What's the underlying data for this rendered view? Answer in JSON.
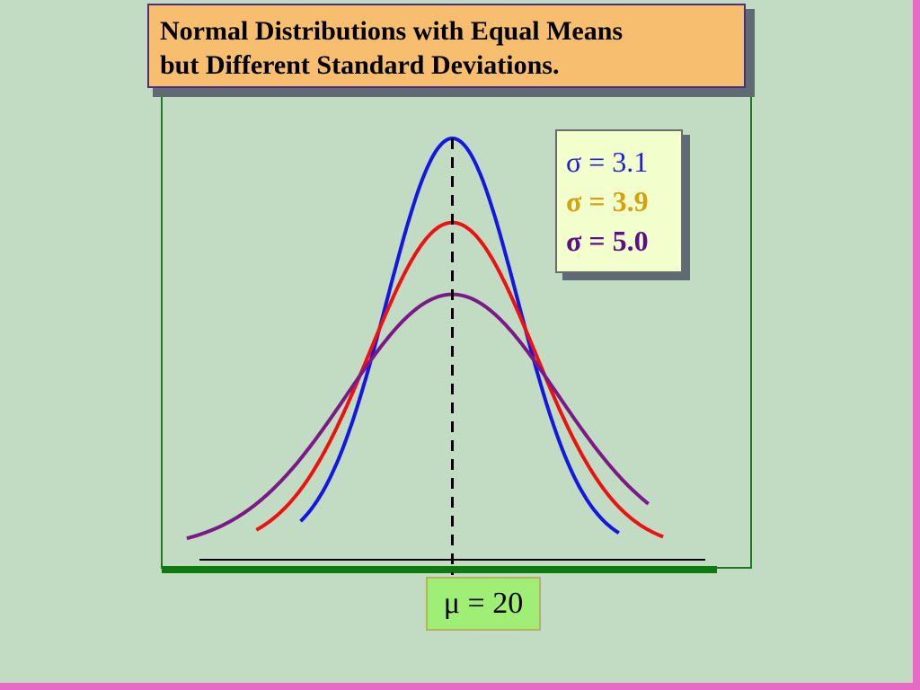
{
  "slide": {
    "title_line1": "Normal Distributions with Equal Means",
    "title_line2": "but Different Standard Deviations."
  },
  "legend": {
    "items": [
      {
        "label": "σ = 3.1",
        "color": "#1d1dd8",
        "bold": false
      },
      {
        "label": "σ = 3.9",
        "color": "#d4a20e",
        "bold": true
      },
      {
        "label": "σ = 5.0",
        "color": "#5a0f8c",
        "bold": true
      }
    ]
  },
  "mean_label": "μ = 20",
  "chart_data": {
    "type": "line",
    "mean": 20,
    "x_range": [
      8,
      32
    ],
    "series": [
      {
        "sigma": 3.1,
        "x_range": [
          12.8,
          27.9
        ],
        "color": "#1515e6"
      },
      {
        "sigma": 3.9,
        "x_range": [
          10.7,
          30.0
        ],
        "color": "#ee1111"
      },
      {
        "sigma": 5.0,
        "x_range": [
          7.4,
          29.3
        ],
        "color": "#7b1a86"
      }
    ],
    "reference_line": {
      "x": 20,
      "style": "dashed",
      "color": "#000000"
    }
  }
}
